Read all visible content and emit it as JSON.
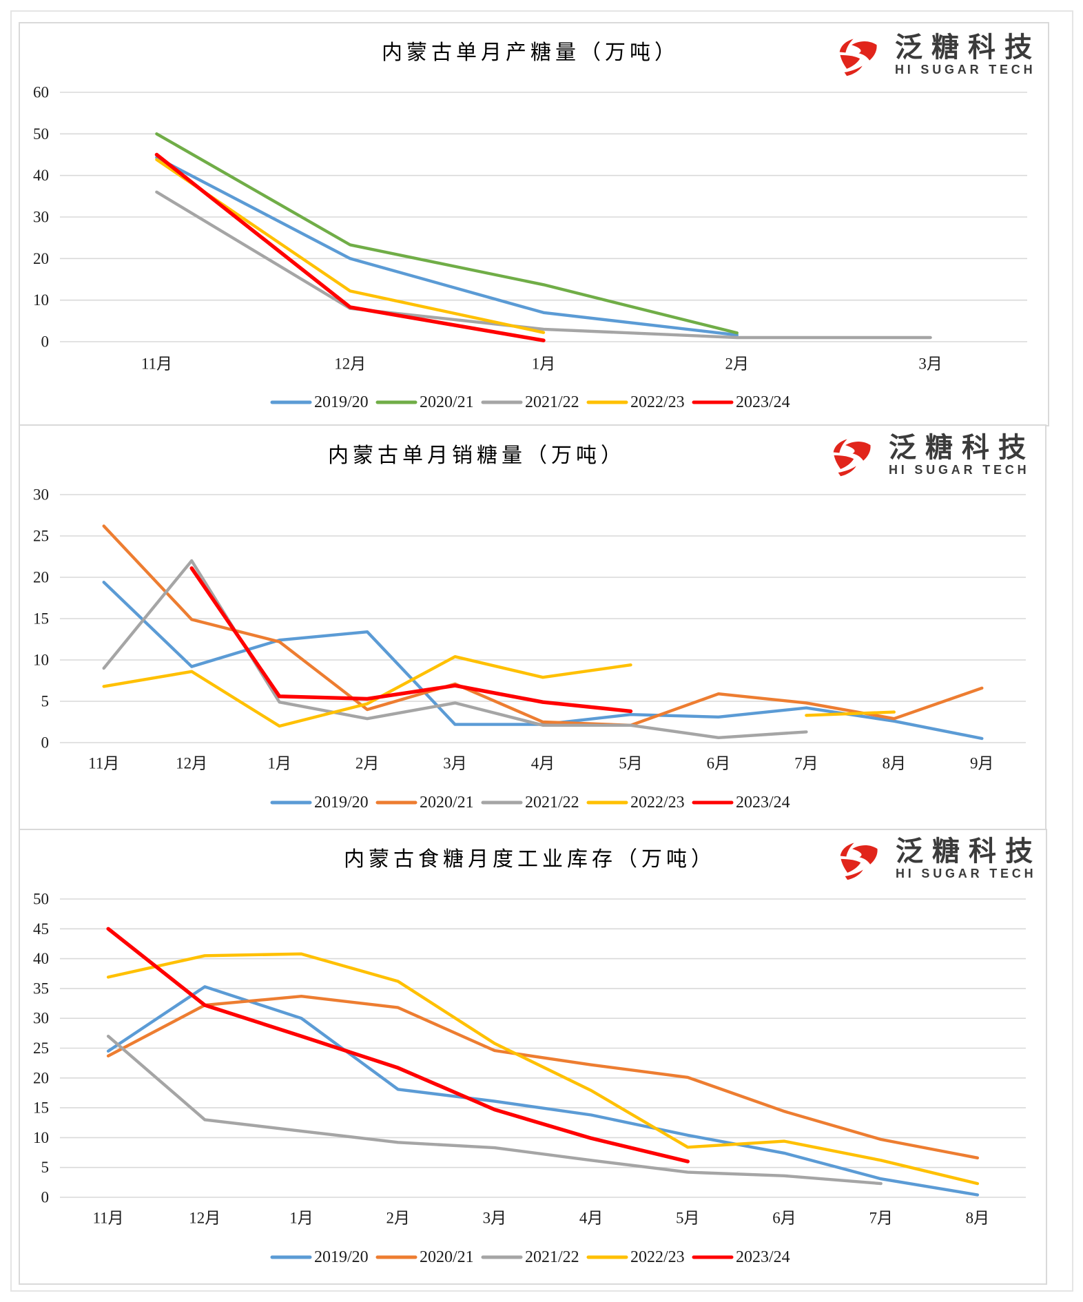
{
  "branding": {
    "name_cn": "泛糖科技",
    "name_en": "HI SUGAR TECH",
    "logo_color": "#E1251B"
  },
  "chart_data": [
    {
      "type": "line",
      "title": "内蒙古单月产糖量（万吨）",
      "xlabel": "",
      "ylabel": "",
      "categories": [
        "11月",
        "12月",
        "1月",
        "2月",
        "3月"
      ],
      "ylim": [
        0,
        60
      ],
      "yticks": [
        0,
        10,
        20,
        30,
        40,
        50,
        60
      ],
      "grid": true,
      "legend_position": "bottom",
      "series": [
        {
          "name": "2019/20",
          "color": "#5B9BD5",
          "values": [
            44.3,
            20.0,
            7.0,
            1.6,
            null
          ]
        },
        {
          "name": "2020/21",
          "color": "#70AD47",
          "values": [
            50.0,
            23.3,
            13.7,
            2.1,
            null
          ]
        },
        {
          "name": "2021/22",
          "color": "#A5A5A5",
          "values": [
            36.0,
            8.0,
            3.0,
            1.0,
            1.0
          ]
        },
        {
          "name": "2022/23",
          "color": "#FFC000",
          "values": [
            43.8,
            12.2,
            2.2,
            null,
            null
          ]
        },
        {
          "name": "2023/24",
          "color": "#FF0000",
          "values": [
            45.0,
            8.3,
            0.3,
            null,
            null
          ]
        }
      ]
    },
    {
      "type": "line",
      "title": "内蒙古单月销糖量（万吨）",
      "xlabel": "",
      "ylabel": "",
      "categories": [
        "11月",
        "12月",
        "1月",
        "2月",
        "3月",
        "4月",
        "5月",
        "6月",
        "7月",
        "8月",
        "9月"
      ],
      "ylim": [
        0,
        30
      ],
      "yticks": [
        0,
        5,
        10,
        15,
        20,
        25,
        30
      ],
      "grid": true,
      "legend_position": "bottom",
      "series": [
        {
          "name": "2019/20",
          "color": "#5B9BD5",
          "values": [
            19.4,
            9.2,
            12.4,
            13.4,
            2.2,
            2.2,
            3.4,
            3.1,
            4.2,
            2.6,
            0.5
          ]
        },
        {
          "name": "2020/21",
          "color": "#ED7D31",
          "values": [
            26.2,
            14.9,
            12.2,
            4.0,
            7.1,
            2.5,
            2.1,
            5.9,
            4.8,
            2.9,
            6.6
          ]
        },
        {
          "name": "2021/22",
          "color": "#A5A5A5",
          "values": [
            9.0,
            22.0,
            4.9,
            2.9,
            4.8,
            2.1,
            2.1,
            0.6,
            1.3,
            null,
            null
          ]
        },
        {
          "name": "2022/23",
          "color": "#FFC000",
          "values": [
            6.8,
            8.6,
            2.0,
            4.7,
            10.4,
            7.9,
            9.4,
            null,
            3.3,
            3.7,
            null
          ]
        },
        {
          "name": "2023/24",
          "color": "#FF0000",
          "values": [
            null,
            21.1,
            5.6,
            5.3,
            6.9,
            4.9,
            3.8,
            null,
            null,
            null,
            null
          ]
        }
      ]
    },
    {
      "type": "line",
      "title": "内蒙古食糖月度工业库存（万吨）",
      "xlabel": "",
      "ylabel": "",
      "categories": [
        "11月",
        "12月",
        "1月",
        "2月",
        "3月",
        "4月",
        "5月",
        "6月",
        "7月",
        "8月"
      ],
      "ylim": [
        0,
        50
      ],
      "yticks": [
        0,
        5,
        10,
        15,
        20,
        25,
        30,
        35,
        40,
        45,
        50
      ],
      "grid": true,
      "legend_position": "bottom",
      "series": [
        {
          "name": "2019/20",
          "color": "#5B9BD5",
          "values": [
            24.5,
            35.3,
            30.0,
            18.1,
            16.1,
            13.8,
            10.4,
            7.4,
            3.1,
            0.4
          ]
        },
        {
          "name": "2020/21",
          "color": "#ED7D31",
          "values": [
            23.7,
            32.2,
            33.7,
            31.8,
            24.6,
            22.2,
            20.1,
            14.4,
            9.7,
            6.6
          ]
        },
        {
          "name": "2021/22",
          "color": "#A5A5A5",
          "values": [
            27.0,
            13.0,
            11.1,
            9.2,
            8.3,
            6.2,
            4.2,
            3.6,
            2.3,
            null
          ]
        },
        {
          "name": "2022/23",
          "color": "#FFC000",
          "values": [
            36.9,
            40.5,
            40.8,
            36.2,
            25.8,
            17.9,
            8.4,
            9.4,
            6.2,
            2.3
          ]
        },
        {
          "name": "2023/24",
          "color": "#FF0000",
          "values": [
            45.0,
            32.2,
            27.0,
            21.7,
            14.7,
            9.9,
            6.0,
            null,
            null,
            null
          ]
        }
      ]
    }
  ]
}
